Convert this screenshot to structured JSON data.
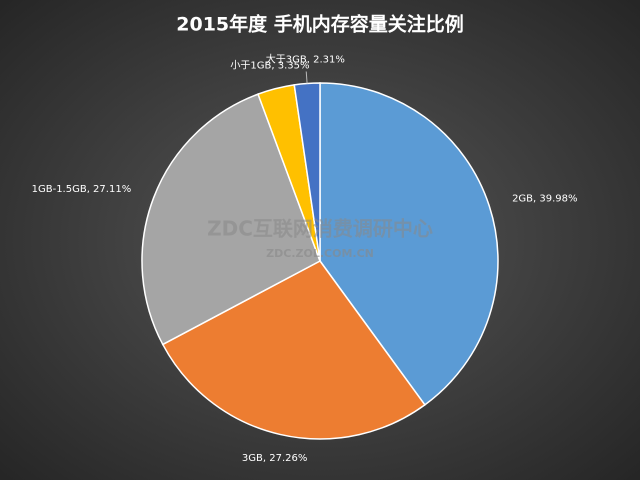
{
  "chart_data": {
    "type": "pie",
    "title": "2015年度 手机内存容量关注比例",
    "values": [
      39.98,
      27.26,
      27.11,
      3.35,
      2.31
    ],
    "value_labels": [
      "2GB, 39.98%",
      "3GB, 27.26%",
      "1GB-1.5GB, 27.11%",
      "小于1GB, 3.35%",
      "大于3GB, 2.31%"
    ],
    "colors": [
      "#5b9bd5",
      "#ed7d31",
      "#a5a5a5",
      "#ffc000",
      "#4472c4"
    ],
    "watermark": {
      "title": "ZDC互联网消费调研中心",
      "url": "ZDC.ZOL.COM.CN"
    }
  }
}
